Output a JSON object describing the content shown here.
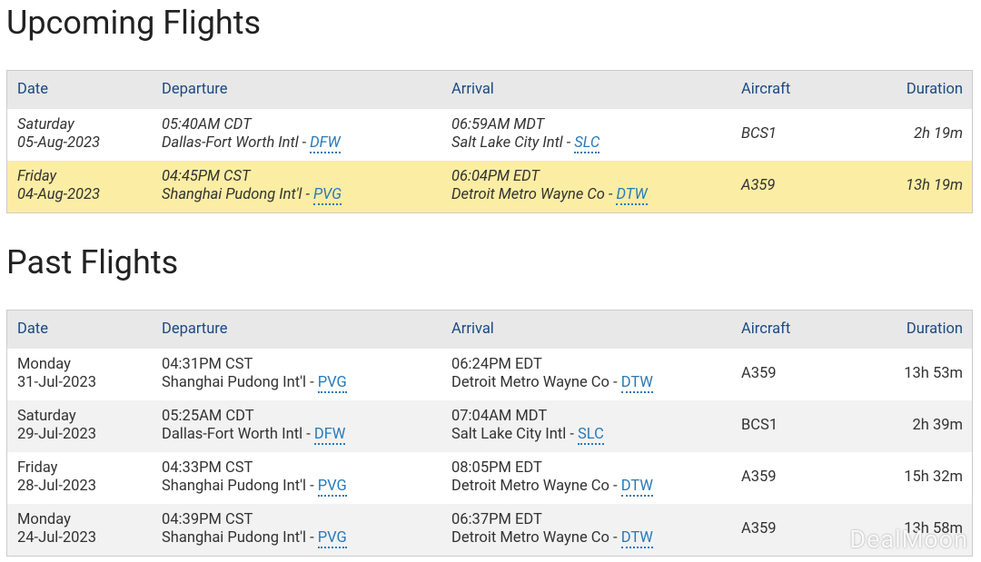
{
  "sections": [
    {
      "title": "Upcoming Flights",
      "columns": [
        "Date",
        "Departure",
        "Arrival",
        "Aircraft",
        "Duration"
      ],
      "rows": [
        {
          "day": "Saturday",
          "date": "05-Aug-2023",
          "dep_time": "05:40AM CDT",
          "dep_airport": "Dallas-Fort Worth Intl -",
          "dep_code": "DFW",
          "arr_time": "06:59AM MDT",
          "arr_airport": "Salt Lake City Intl -",
          "arr_code": "SLC",
          "aircraft": "BCS1",
          "duration": "2h 19m"
        },
        {
          "day": "Friday",
          "date": "04-Aug-2023",
          "dep_time": "04:45PM CST",
          "dep_airport": "Shanghai Pudong Int'l -",
          "dep_code": "PVG",
          "arr_time": "06:04PM EDT",
          "arr_airport": "Detroit Metro Wayne Co -",
          "arr_code": "DTW",
          "aircraft": "A359",
          "duration": "13h 19m"
        }
      ]
    },
    {
      "title": "Past Flights",
      "columns": [
        "Date",
        "Departure",
        "Arrival",
        "Aircraft",
        "Duration"
      ],
      "rows": [
        {
          "day": "Monday",
          "date": "31-Jul-2023",
          "dep_time": "04:31PM CST",
          "dep_airport": "Shanghai Pudong Int'l -",
          "dep_code": "PVG",
          "arr_time": "06:24PM EDT",
          "arr_airport": "Detroit Metro Wayne Co -",
          "arr_code": "DTW",
          "aircraft": "A359",
          "duration": "13h 53m"
        },
        {
          "day": "Saturday",
          "date": "29-Jul-2023",
          "dep_time": "05:25AM CDT",
          "dep_airport": "Dallas-Fort Worth Intl -",
          "dep_code": "DFW",
          "arr_time": "07:04AM MDT",
          "arr_airport": "Salt Lake City Intl -",
          "arr_code": "SLC",
          "aircraft": "BCS1",
          "duration": "2h 39m"
        },
        {
          "day": "Friday",
          "date": "28-Jul-2023",
          "dep_time": "04:33PM CST",
          "dep_airport": "Shanghai Pudong Int'l -",
          "dep_code": "PVG",
          "arr_time": "08:05PM EDT",
          "arr_airport": "Detroit Metro Wayne Co -",
          "arr_code": "DTW",
          "aircraft": "A359",
          "duration": "15h 32m"
        },
        {
          "day": "Monday",
          "date": "24-Jul-2023",
          "dep_time": "04:39PM CST",
          "dep_airport": "Shanghai Pudong Int'l -",
          "dep_code": "PVG",
          "arr_time": "06:37PM EDT",
          "arr_airport": "Detroit Metro Wayne Co -",
          "arr_code": "DTW",
          "aircraft": "A359",
          "duration": "13h 58m"
        }
      ]
    }
  ],
  "watermark": "DealMoon"
}
